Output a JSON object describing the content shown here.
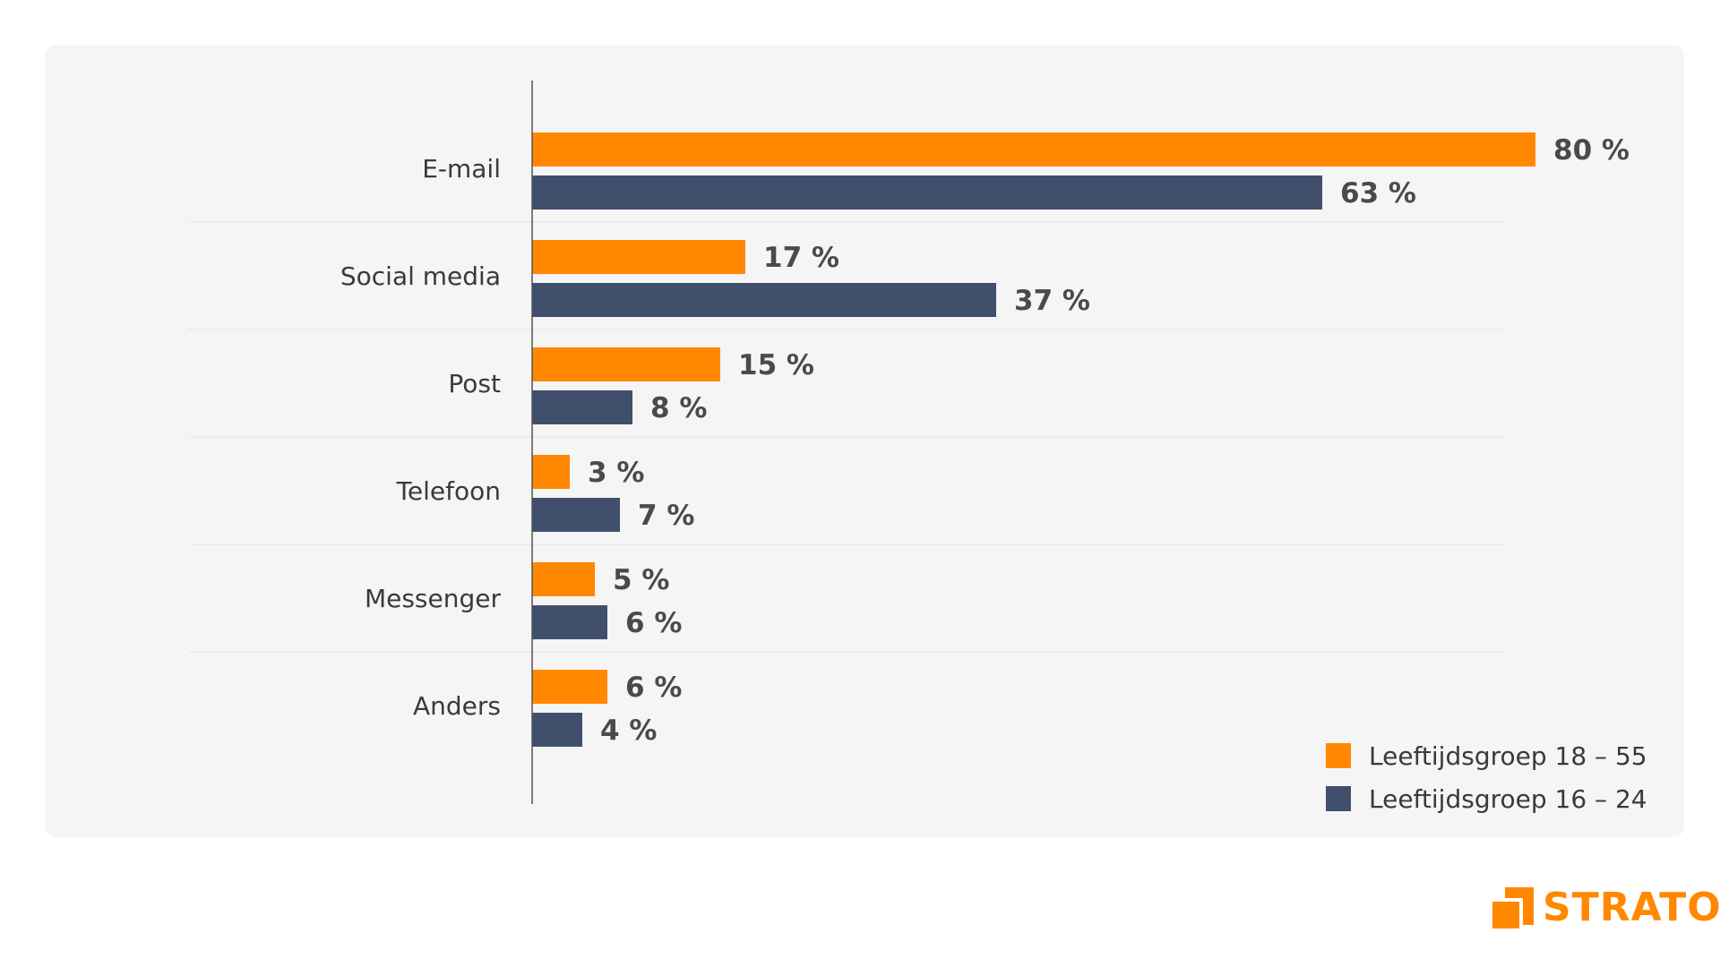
{
  "chart_data": {
    "type": "bar",
    "orientation": "horizontal",
    "categories": [
      "E-mail",
      "Social media",
      "Post",
      "Telefoon",
      "Messenger",
      "Anders"
    ],
    "series": [
      {
        "name": "Leeftijdsgroep 18 – 55",
        "color": "#ff8800",
        "values": [
          80,
          17,
          15,
          3,
          5,
          6
        ]
      },
      {
        "name": "Leeftijdsgroep 16 – 24",
        "color": "#404f6b",
        "values": [
          63,
          37,
          8,
          7,
          6,
          4
        ]
      }
    ],
    "value_labels": [
      [
        "80 %",
        "17 %",
        "15 %",
        "3 %",
        "5 %",
        "6 %"
      ],
      [
        "63 %",
        "37 %",
        "8 %",
        "7 %",
        "6 %",
        "4 %"
      ]
    ],
    "xlim": [
      0,
      80
    ],
    "legend": "bottom-right",
    "grid": false,
    "title": "",
    "xlabel": "",
    "ylabel": ""
  },
  "logo": {
    "text": "STRATO",
    "color": "#ff8800"
  },
  "colors": {
    "panel": "#f5f5f5",
    "separator": "#e3e5ea",
    "axis": "#555555"
  }
}
